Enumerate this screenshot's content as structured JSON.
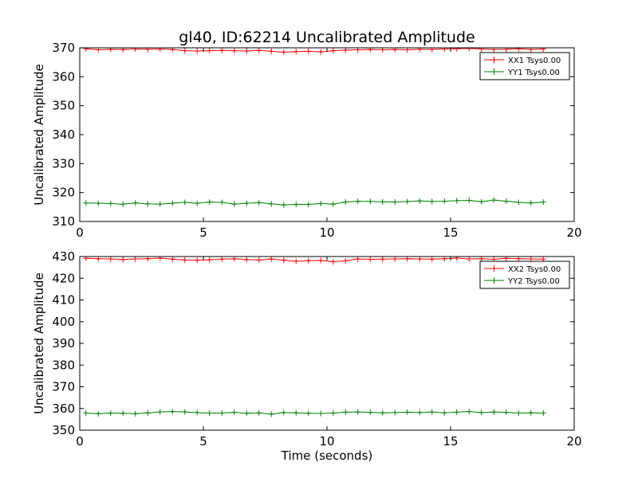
{
  "title": "gl40, ID:62214 Uncalibrated Amplitude",
  "chart_data": [
    {
      "type": "line",
      "ylabel": "Uncalibrated Amplitude",
      "xlabel": "",
      "xlim": [
        0,
        20
      ],
      "ylim": [
        310,
        370
      ],
      "xticks": [
        "0",
        "5",
        "10",
        "15",
        "20"
      ],
      "yticks": [
        "310",
        "320",
        "330",
        "340",
        "350",
        "360",
        "370"
      ],
      "legend_position": "top-right",
      "marker": "plus",
      "x": [
        0.25,
        0.75,
        1.25,
        1.75,
        2.25,
        2.75,
        3.25,
        3.75,
        4.25,
        4.75,
        5.25,
        5.75,
        6.25,
        6.75,
        7.25,
        7.75,
        8.25,
        8.75,
        9.25,
        9.75,
        10.25,
        10.75,
        11.25,
        11.75,
        12.25,
        12.75,
        13.25,
        13.75,
        14.25,
        14.75,
        15.25,
        15.75,
        16.25,
        16.75,
        17.25,
        17.75,
        18.25,
        18.75
      ],
      "series": [
        {
          "name": "XX1 Tsys0.00",
          "color": "#ff0000",
          "values": [
            369.7,
            369.3,
            369.5,
            369.4,
            369.6,
            369.5,
            369.6,
            369.4,
            369.0,
            368.9,
            369.0,
            369.1,
            369.0,
            368.9,
            369.1,
            368.8,
            368.5,
            368.7,
            368.8,
            368.6,
            369.0,
            369.2,
            369.3,
            369.4,
            369.3,
            369.4,
            369.3,
            369.5,
            369.4,
            369.6,
            369.7,
            369.8,
            369.6,
            369.4,
            369.5,
            369.7,
            369.4,
            369.6
          ]
        },
        {
          "name": "YY1 Tsys0.00",
          "color": "#008000",
          "values": [
            316.4,
            316.3,
            316.2,
            316.0,
            316.4,
            316.1,
            316.0,
            316.3,
            316.6,
            316.3,
            316.7,
            316.6,
            316.0,
            316.3,
            316.5,
            316.1,
            315.7,
            315.9,
            315.9,
            316.2,
            316.0,
            316.7,
            317.0,
            316.9,
            316.8,
            316.7,
            316.9,
            317.1,
            316.9,
            317.0,
            317.2,
            317.3,
            316.8,
            317.4,
            317.0,
            316.6,
            316.4,
            316.7
          ]
        }
      ]
    },
    {
      "type": "line",
      "ylabel": "Uncalibrated Amplitude",
      "xlabel": "Time (seconds)",
      "xlim": [
        0,
        20
      ],
      "ylim": [
        350,
        430
      ],
      "xticks": [
        "0",
        "5",
        "10",
        "15",
        "20"
      ],
      "yticks": [
        "350",
        "360",
        "370",
        "380",
        "390",
        "400",
        "410",
        "420",
        "430"
      ],
      "legend_position": "top-right",
      "marker": "plus",
      "x": [
        0.25,
        0.75,
        1.25,
        1.75,
        2.25,
        2.75,
        3.25,
        3.75,
        4.25,
        4.75,
        5.25,
        5.75,
        6.25,
        6.75,
        7.25,
        7.75,
        8.25,
        8.75,
        9.25,
        9.75,
        10.25,
        10.75,
        11.25,
        11.75,
        12.25,
        12.75,
        13.25,
        13.75,
        14.25,
        14.75,
        15.25,
        15.75,
        16.25,
        16.75,
        17.25,
        17.75,
        18.25,
        18.75
      ],
      "series": [
        {
          "name": "XX2 Tsys0.00",
          "color": "#ff0000",
          "values": [
            429.2,
            429.0,
            428.9,
            428.6,
            428.9,
            429.0,
            429.3,
            428.8,
            428.4,
            428.3,
            428.5,
            428.8,
            429.0,
            428.6,
            428.4,
            428.9,
            428.3,
            427.8,
            428.1,
            428.2,
            427.6,
            428.0,
            428.9,
            428.7,
            428.8,
            428.9,
            429.0,
            428.9,
            428.8,
            429.0,
            429.3,
            428.9,
            429.0,
            428.7,
            429.2,
            429.0,
            428.9,
            428.8
          ]
        },
        {
          "name": "YY2 Tsys0.00",
          "color": "#008000",
          "values": [
            357.9,
            357.6,
            357.9,
            357.8,
            357.6,
            358.0,
            358.4,
            358.6,
            358.4,
            358.1,
            357.9,
            357.9,
            358.2,
            357.8,
            358.0,
            357.4,
            358.1,
            358.0,
            357.8,
            357.7,
            357.9,
            358.3,
            358.4,
            358.2,
            358.0,
            358.1,
            358.3,
            358.1,
            358.4,
            358.0,
            358.3,
            358.6,
            358.1,
            358.4,
            358.2,
            357.9,
            358.0,
            357.9
          ]
        }
      ]
    }
  ]
}
